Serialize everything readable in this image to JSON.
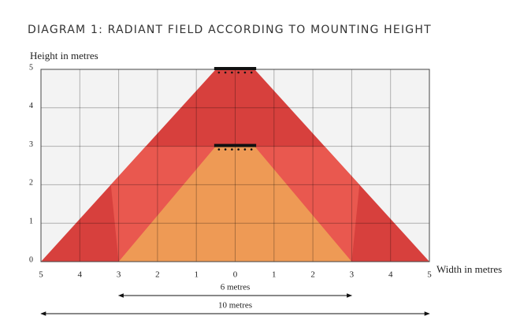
{
  "chart_data": {
    "type": "area",
    "title": "DIAGRAM 1: RADIANT FIELD ACCORDING TO MOUNTING HEIGHT",
    "y_label": "Height in metres",
    "x_label": "Width in metres",
    "xlim": [
      -5,
      5
    ],
    "ylim": [
      0,
      5
    ],
    "xticks": [
      {
        "value": -5,
        "label": "5"
      },
      {
        "value": -4,
        "label": "4"
      },
      {
        "value": -3,
        "label": "3"
      },
      {
        "value": -2,
        "label": "2"
      },
      {
        "value": -1,
        "label": "1"
      },
      0,
      1,
      2,
      3,
      4,
      5
    ],
    "yticks": [
      0,
      1,
      2,
      3,
      4,
      5
    ],
    "grid": true,
    "fields": [
      {
        "height": 5,
        "width": 10,
        "color": "#d7403d"
      },
      {
        "height": 3,
        "width": 6,
        "color": "#ee9a55"
      }
    ],
    "overlap_color": "#e9584f",
    "annotations": [
      "6 metres",
      "10 metres"
    ]
  }
}
